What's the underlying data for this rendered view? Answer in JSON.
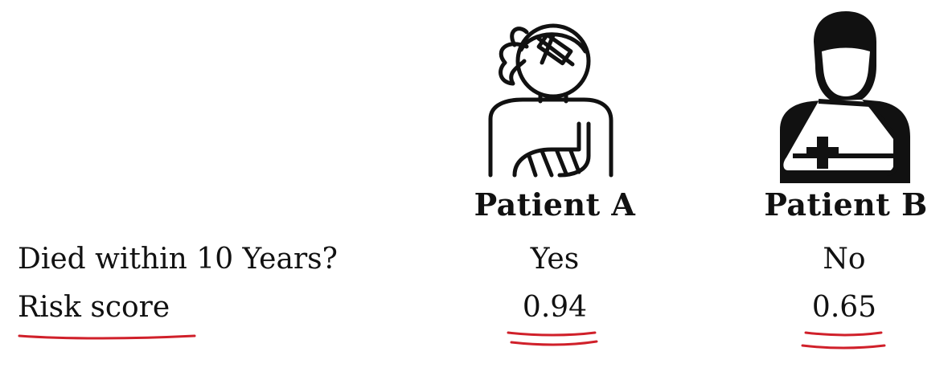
{
  "patients": [
    {
      "label": "Patient A",
      "icon": "patient-female-bandaged-icon"
    },
    {
      "label": "Patient B",
      "icon": "patient-male-arm-sling-icon"
    }
  ],
  "rows": [
    {
      "label": "Died within 10 Years?",
      "values": [
        "Yes",
        "No"
      ]
    },
    {
      "label": "Risk score",
      "values": [
        "0.94",
        "0.65"
      ]
    }
  ],
  "colors": {
    "text": "#111111",
    "annotation": "#d0202a"
  }
}
